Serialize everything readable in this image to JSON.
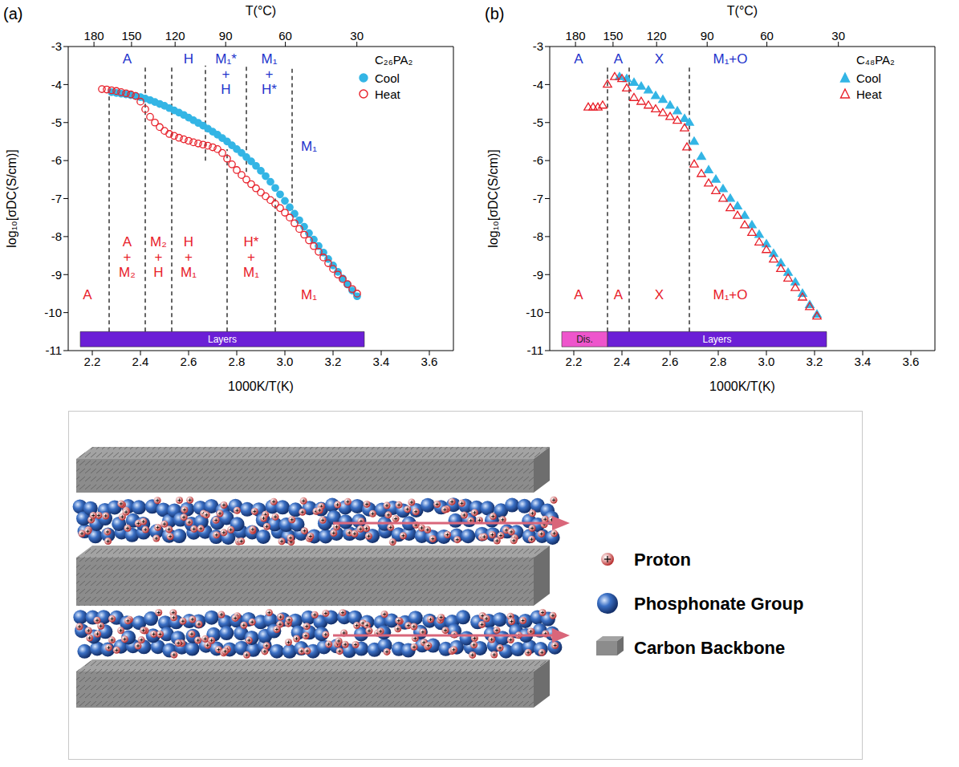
{
  "chart_data": [
    {
      "type": "scatter",
      "panel": "(a)",
      "xlabel": "1000K/T(K)",
      "ylabel": "log₁₀[σDC(S/cm)]",
      "x2label": "T(°C)",
      "xlim": [
        2.1,
        3.7
      ],
      "xticks": [
        2.2,
        2.4,
        2.6,
        2.8,
        {
          "value": 3,
          "label": "3.0"
        },
        3.2,
        3.4,
        3.6
      ],
      "x2ticks": [
        {
          "value": 2.207,
          "label": "180"
        },
        {
          "value": 2.363,
          "label": "150"
        },
        {
          "value": 2.544,
          "label": "120"
        },
        {
          "value": 2.754,
          "label": "90"
        },
        {
          "value": 3.002,
          "label": "60"
        },
        {
          "value": 3.299,
          "label": "30"
        }
      ],
      "ylim": [
        -11,
        -3
      ],
      "yticks": [
        -11,
        -10,
        -9,
        -8,
        -7,
        -6,
        -5,
        -4,
        -3
      ],
      "legend": "upper right",
      "legend_title": "C₂₆PA₂",
      "series": [
        {
          "name": "Cool",
          "color": "#33b5e5",
          "marker": "filled_circle",
          "x": [
            2.28,
            2.3,
            2.32,
            2.34,
            2.36,
            2.38,
            2.4,
            2.42,
            2.44,
            2.46,
            2.48,
            2.5,
            2.52,
            2.54,
            2.56,
            2.58,
            2.6,
            2.62,
            2.64,
            2.66,
            2.68,
            2.7,
            2.72,
            2.74,
            2.76,
            2.78,
            2.8,
            2.82,
            2.84,
            2.86,
            2.88,
            2.9,
            2.92,
            2.94,
            2.96,
            2.98,
            3.0,
            3.02,
            3.04,
            3.06,
            3.08,
            3.1,
            3.12,
            3.14,
            3.16,
            3.18,
            3.2,
            3.22,
            3.24,
            3.26,
            3.28,
            3.3
          ],
          "values": [
            -4.2,
            -4.22,
            -4.24,
            -4.26,
            -4.28,
            -4.3,
            -4.33,
            -4.37,
            -4.41,
            -4.46,
            -4.51,
            -4.56,
            -4.62,
            -4.68,
            -4.74,
            -4.8,
            -4.87,
            -4.94,
            -5.01,
            -5.08,
            -5.16,
            -5.24,
            -5.32,
            -5.41,
            -5.5,
            -5.6,
            -5.7,
            -5.8,
            -5.91,
            -6.02,
            -6.14,
            -6.27,
            -6.41,
            -6.56,
            -6.72,
            -6.89,
            -7.06,
            -7.23,
            -7.4,
            -7.57,
            -7.74,
            -7.91,
            -8.08,
            -8.25,
            -8.42,
            -8.59,
            -8.76,
            -8.93,
            -9.1,
            -9.26,
            -9.42,
            -9.57
          ]
        },
        {
          "name": "Heat",
          "color": "#e8202a",
          "marker": "open_circle",
          "x": [
            2.24,
            2.26,
            2.28,
            2.3,
            2.32,
            2.34,
            2.36,
            2.38,
            2.4,
            2.42,
            2.44,
            2.46,
            2.48,
            2.5,
            2.52,
            2.54,
            2.56,
            2.58,
            2.6,
            2.62,
            2.64,
            2.66,
            2.68,
            2.7,
            2.72,
            2.74,
            2.76,
            2.78,
            2.8,
            2.82,
            2.84,
            2.86,
            2.88,
            2.9,
            2.92,
            2.94,
            2.96,
            2.98,
            3.0,
            3.02,
            3.04,
            3.06,
            3.08,
            3.1,
            3.12,
            3.14,
            3.16,
            3.18,
            3.2,
            3.22,
            3.24,
            3.26,
            3.28,
            3.3
          ],
          "values": [
            -4.12,
            -4.13,
            -4.15,
            -4.17,
            -4.2,
            -4.23,
            -4.26,
            -4.3,
            -4.45,
            -4.65,
            -4.85,
            -5.0,
            -5.12,
            -5.22,
            -5.3,
            -5.35,
            -5.4,
            -5.44,
            -5.48,
            -5.52,
            -5.55,
            -5.58,
            -5.61,
            -5.65,
            -5.7,
            -5.8,
            -5.95,
            -6.1,
            -6.25,
            -6.38,
            -6.5,
            -6.62,
            -6.73,
            -6.84,
            -6.94,
            -7.04,
            -7.14,
            -7.25,
            -7.37,
            -7.5,
            -7.65,
            -7.8,
            -7.95,
            -8.1,
            -8.25,
            -8.4,
            -8.55,
            -8.7,
            -8.85,
            -9.0,
            -9.12,
            -9.25,
            -9.38,
            -9.5
          ]
        }
      ],
      "vlines": [
        {
          "x": 2.27,
          "y": [
            -10.5,
            -4.1
          ]
        },
        {
          "x": 2.42,
          "y": [
            -10.5,
            -3.5
          ]
        },
        {
          "x": 2.53,
          "y": [
            -10.5,
            -3.5
          ]
        },
        {
          "x": 2.67,
          "y": [
            -6.0,
            -3.5
          ]
        },
        {
          "x": 2.76,
          "y": [
            -10.5,
            -5.7
          ]
        },
        {
          "x": 2.84,
          "y": [
            -6.3,
            -3.5
          ]
        },
        {
          "x": 2.96,
          "y": [
            -10.5,
            -7.0
          ]
        },
        {
          "x": 3.03,
          "y": [
            -7.3,
            -3.5
          ]
        }
      ],
      "annotations": [
        {
          "lines": [
            "A"
          ],
          "x": 2.345,
          "y": -3.2,
          "color": "#2233cc"
        },
        {
          "lines": [
            "H"
          ],
          "x": 2.6,
          "y": -3.2,
          "color": "#2233cc"
        },
        {
          "lines": [
            "M₁*",
            "+",
            "H"
          ],
          "x": 2.755,
          "y": -3.2,
          "color": "#2233cc"
        },
        {
          "lines": [
            "M₁",
            "+",
            "H*"
          ],
          "x": 2.935,
          "y": -3.2,
          "color": "#2233cc"
        },
        {
          "lines": [
            "M₁"
          ],
          "x": 3.1,
          "y": -5.5,
          "color": "#2233cc"
        },
        {
          "lines": [
            "A"
          ],
          "x": 2.18,
          "y": -9.4,
          "color": "#e8202a"
        },
        {
          "lines": [
            "A",
            "+",
            "M₂"
          ],
          "x": 2.345,
          "y": -8.0,
          "color": "#e8202a"
        },
        {
          "lines": [
            "M₂",
            "+",
            "H"
          ],
          "x": 2.475,
          "y": -8.0,
          "color": "#e8202a"
        },
        {
          "lines": [
            "H",
            "+",
            "M₁"
          ],
          "x": 2.6,
          "y": -8.0,
          "color": "#e8202a"
        },
        {
          "lines": [
            "H*",
            "+",
            "M₁"
          ],
          "x": 2.86,
          "y": -8.0,
          "color": "#e8202a"
        },
        {
          "lines": [
            "M₁"
          ],
          "x": 3.1,
          "y": -9.4,
          "color": "#e8202a"
        }
      ],
      "bands": [
        {
          "label": "Layers",
          "x": [
            2.15,
            3.33
          ],
          "color": "#6b1fd6"
        }
      ]
    },
    {
      "type": "scatter",
      "panel": "(b)",
      "xlabel": "1000K/T(K)",
      "ylabel": "log₁₀[σDC(S/cm)]",
      "x2label": "T(°C)",
      "xlim": [
        2.1,
        3.7
      ],
      "xticks": [
        2.2,
        2.4,
        2.6,
        2.8,
        {
          "value": 3,
          "label": "3.0"
        },
        3.2,
        3.4,
        3.6
      ],
      "x2ticks": [
        {
          "value": 2.207,
          "label": "180"
        },
        {
          "value": 2.363,
          "label": "150"
        },
        {
          "value": 2.544,
          "label": "120"
        },
        {
          "value": 2.754,
          "label": "90"
        },
        {
          "value": 3.002,
          "label": "60"
        },
        {
          "value": 3.299,
          "label": "30"
        }
      ],
      "ylim": [
        -11,
        -3
      ],
      "yticks": [
        -11,
        -10,
        -9,
        -8,
        -7,
        -6,
        -5,
        -4,
        -3
      ],
      "legend": "upper right",
      "legend_title": "C₄₈PA₂",
      "series": [
        {
          "name": "Cool",
          "color": "#33b5e5",
          "marker": "filled_triangle",
          "x": [
            2.39,
            2.42,
            2.45,
            2.48,
            2.51,
            2.54,
            2.57,
            2.6,
            2.63,
            2.66,
            2.68,
            2.7,
            2.73,
            2.76,
            2.79,
            2.82,
            2.85,
            2.88,
            2.91,
            2.94,
            2.97,
            3.0,
            3.03,
            3.06,
            3.09,
            3.12,
            3.15,
            3.18,
            3.21
          ],
          "values": [
            -3.8,
            -3.85,
            -3.95,
            -4.05,
            -4.15,
            -4.3,
            -4.4,
            -4.55,
            -4.7,
            -4.9,
            -5.0,
            -5.5,
            -5.9,
            -6.25,
            -6.5,
            -6.75,
            -7.0,
            -7.2,
            -7.45,
            -7.7,
            -7.95,
            -8.2,
            -8.45,
            -8.7,
            -8.95,
            -9.2,
            -9.5,
            -9.8,
            -10.05
          ]
        },
        {
          "name": "Heat",
          "color": "#e8202a",
          "marker": "open_triangle",
          "x": [
            2.26,
            2.28,
            2.3,
            2.32,
            2.34,
            2.37,
            2.4,
            2.42,
            2.45,
            2.48,
            2.51,
            2.54,
            2.57,
            2.6,
            2.63,
            2.66,
            2.67,
            2.7,
            2.73,
            2.76,
            2.79,
            2.82,
            2.85,
            2.88,
            2.91,
            2.94,
            2.97,
            3.0,
            3.03,
            3.06,
            3.09,
            3.12,
            3.15,
            3.18,
            3.21
          ],
          "values": [
            -4.6,
            -4.6,
            -4.6,
            -4.55,
            -4.0,
            -3.8,
            -3.85,
            -4.1,
            -4.35,
            -4.45,
            -4.55,
            -4.65,
            -4.75,
            -4.85,
            -4.95,
            -5.15,
            -5.65,
            -6.1,
            -6.35,
            -6.6,
            -6.8,
            -7.0,
            -7.25,
            -7.45,
            -7.7,
            -7.9,
            -8.15,
            -8.35,
            -8.6,
            -8.85,
            -9.1,
            -9.35,
            -9.6,
            -9.85,
            -10.1
          ]
        }
      ],
      "vlines": [
        {
          "x": 2.34,
          "y": [
            -10.5,
            -3.5
          ]
        },
        {
          "x": 2.43,
          "y": [
            -10.5,
            -3.5
          ]
        },
        {
          "x": 2.68,
          "y": [
            -10.5,
            -3.5
          ]
        }
      ],
      "annotations": [
        {
          "lines": [
            "A"
          ],
          "x": 2.22,
          "y": -3.2,
          "color": "#2233cc"
        },
        {
          "lines": [
            "A"
          ],
          "x": 2.385,
          "y": -3.2,
          "color": "#2233cc"
        },
        {
          "lines": [
            "X"
          ],
          "x": 2.555,
          "y": -3.2,
          "color": "#2233cc"
        },
        {
          "lines": [
            "M₁+O"
          ],
          "x": 2.85,
          "y": -3.2,
          "color": "#2233cc"
        },
        {
          "lines": [
            "A"
          ],
          "x": 2.22,
          "y": -9.4,
          "color": "#e8202a"
        },
        {
          "lines": [
            "A"
          ],
          "x": 2.385,
          "y": -9.4,
          "color": "#e8202a"
        },
        {
          "lines": [
            "X"
          ],
          "x": 2.555,
          "y": -9.4,
          "color": "#e8202a"
        },
        {
          "lines": [
            "M₁+O"
          ],
          "x": 2.85,
          "y": -9.4,
          "color": "#e8202a"
        }
      ],
      "bands": [
        {
          "label": "Dis.",
          "x": [
            2.15,
            2.34
          ],
          "color": "#ee55cc"
        },
        {
          "label": "Layers",
          "x": [
            2.34,
            3.25
          ],
          "color": "#6b1fd6"
        }
      ]
    }
  ],
  "diagram": {
    "legend": [
      {
        "label": "Proton"
      },
      {
        "label": "Phosphonate Group"
      },
      {
        "label": "Carbon Backbone"
      }
    ]
  }
}
